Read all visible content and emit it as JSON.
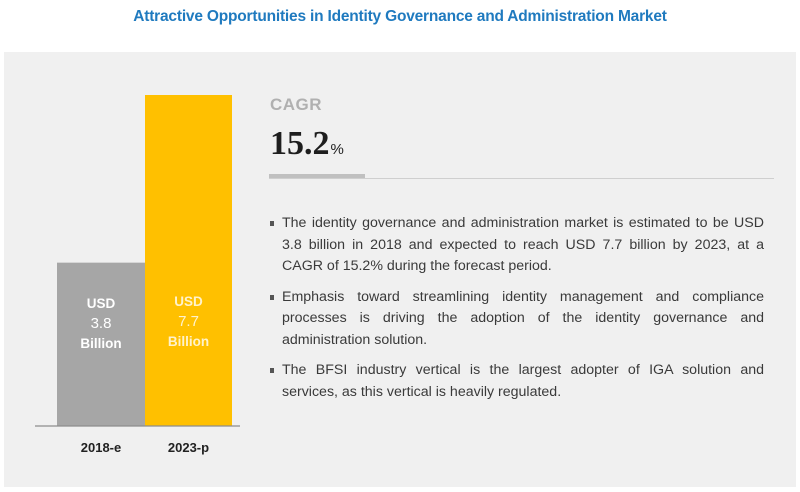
{
  "title": "Attractive Opportunities in Identity Governance and Administration Market",
  "colors": {
    "title": "#1f7abf",
    "bar_2018": "#a6a6a6",
    "bar_2023": "#ffc000",
    "label_2018": "#ffffff",
    "label_2023": "#fff2cc",
    "panel": "#f0f0f0"
  },
  "chart_data": {
    "type": "bar",
    "title": "",
    "xlabel": "",
    "ylabel": "",
    "categories": [
      "2018-e",
      "2023-p"
    ],
    "values": [
      3.8,
      7.7
    ],
    "unit": "USD Billion",
    "ylim": [
      0,
      7.7
    ],
    "grid": false,
    "bar_labels": [
      [
        "USD",
        "3.8",
        "Billion"
      ],
      [
        "USD",
        "7.7",
        "Billion"
      ]
    ]
  },
  "cagr": {
    "label": "CAGR",
    "value": "15.2",
    "unit": "%"
  },
  "bullets": [
    "The identity governance and administration market is estimated to be USD 3.8 billion in 2018 and expected to reach USD 7.7 billion by 2023, at a CAGR of 15.2% during the forecast period.",
    "Emphasis toward streamlining identity management and compliance processes is driving the adoption of the identity governance and administration solution.",
    "The BFSI industry vertical is the largest adopter of IGA solution and services, as this vertical is heavily regulated."
  ]
}
